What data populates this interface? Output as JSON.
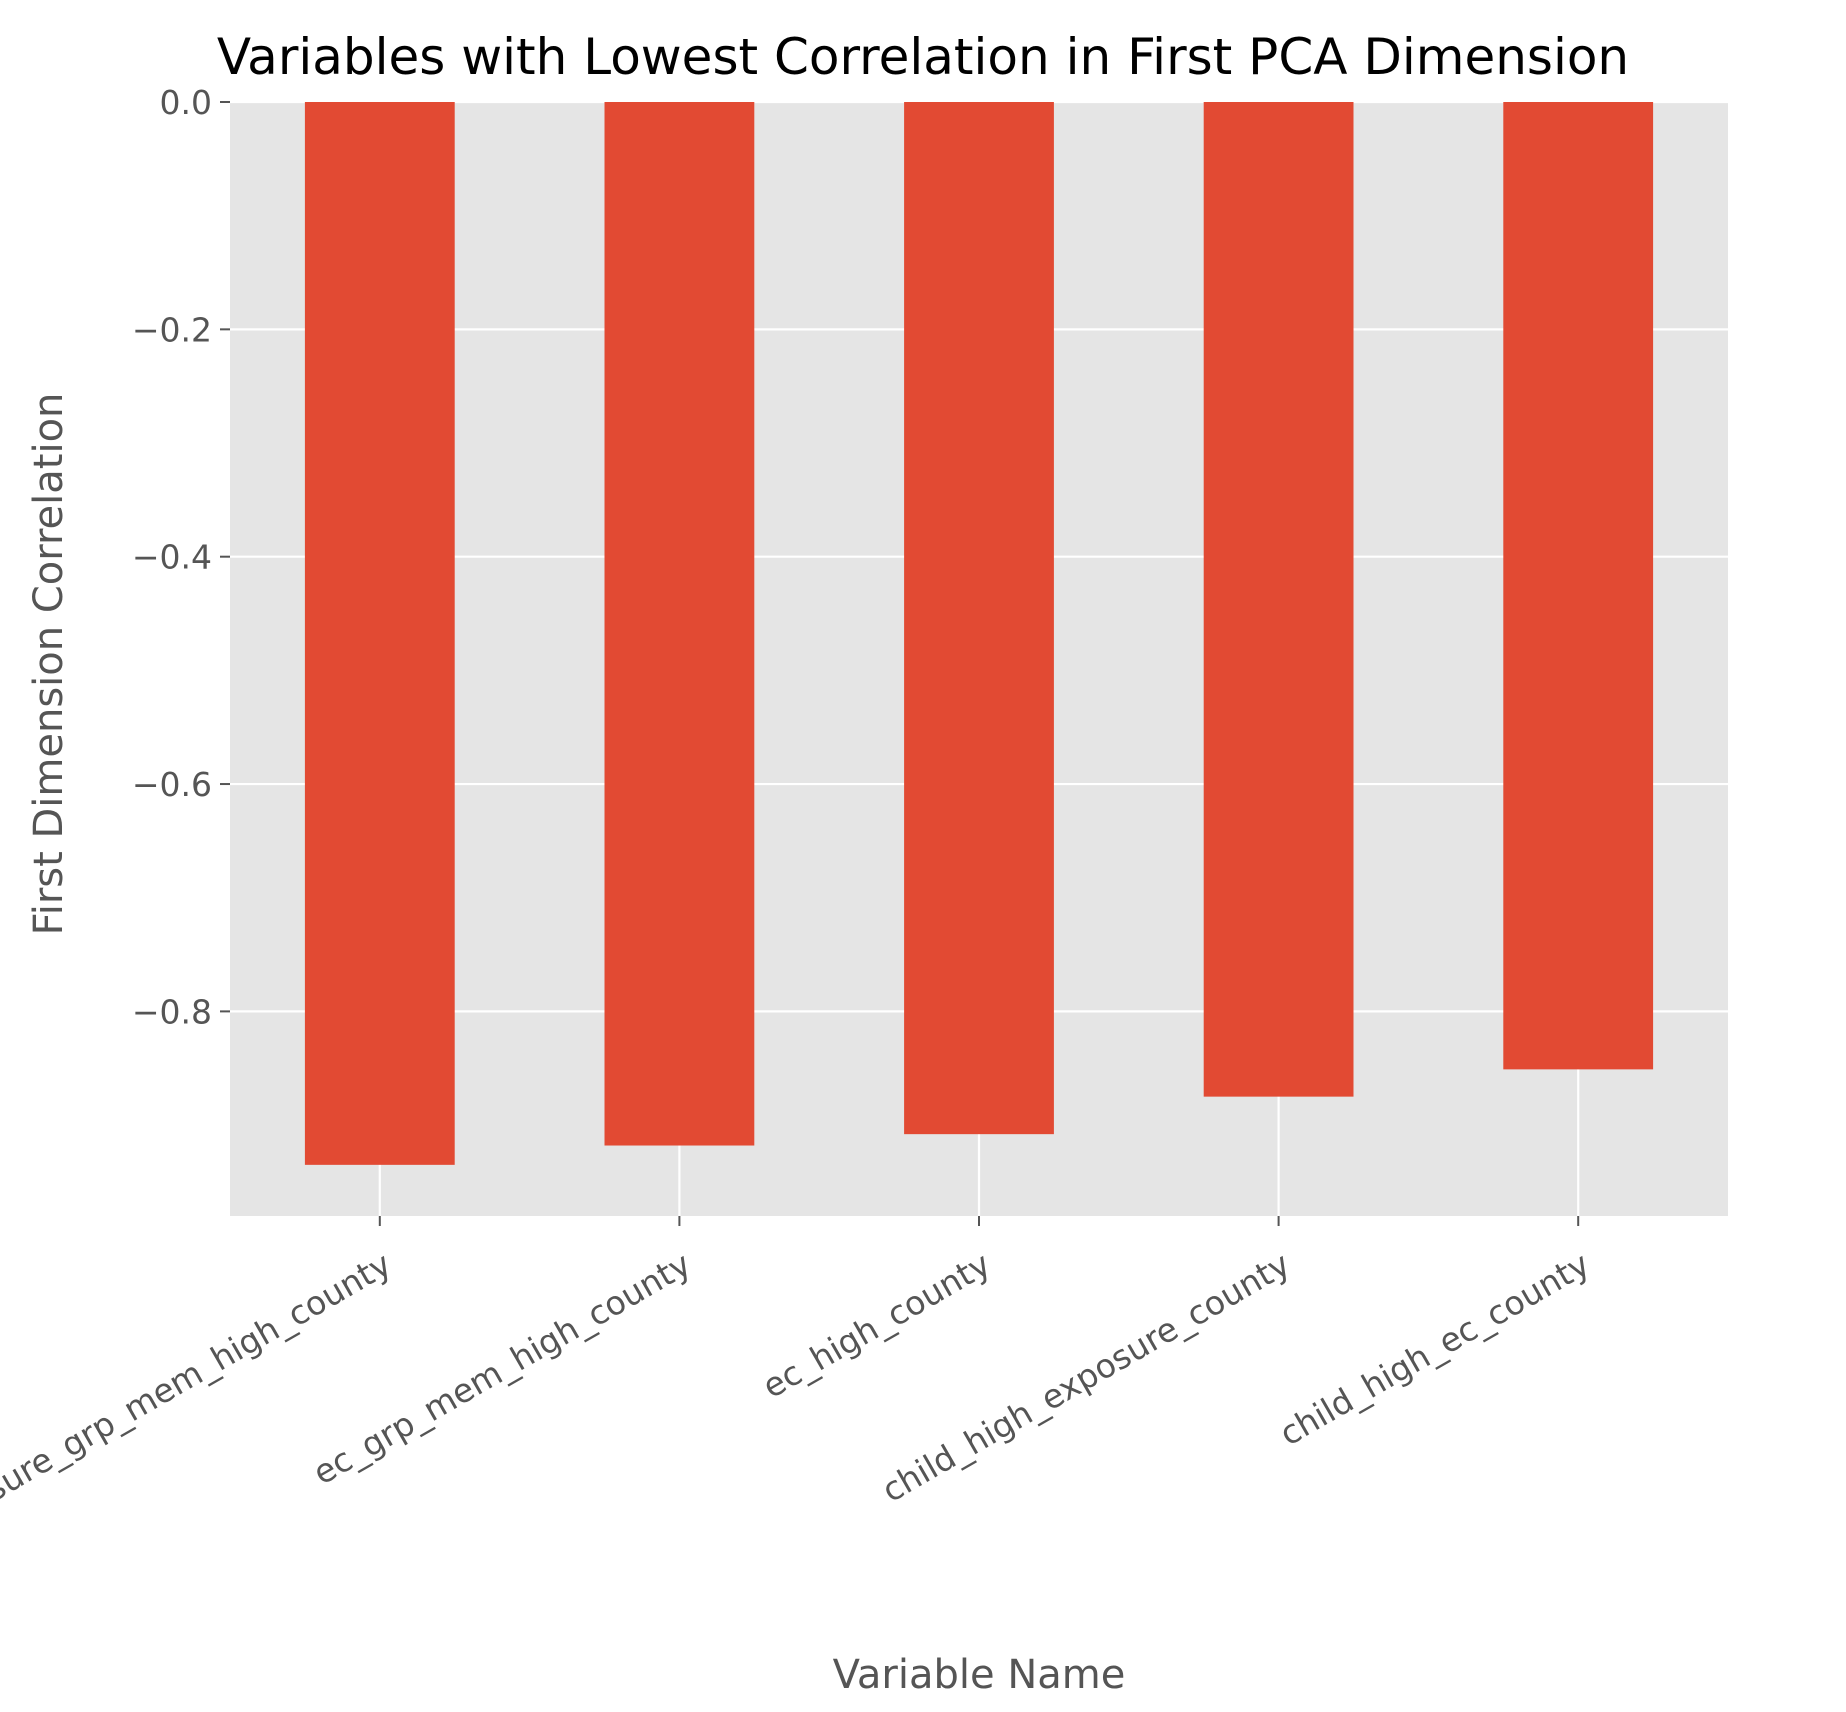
{
  "chart_data": {
    "type": "bar",
    "title": "Variables with Lowest Correlation in First PCA Dimension",
    "xlabel": "Variable Name",
    "ylabel": "First Dimension Correlation",
    "categories": [
      "exposure_grp_mem_high_county",
      "ec_grp_mem_high_county",
      "ec_high_county",
      "child_high_exposure_county",
      "child_high_ec_county"
    ],
    "values": [
      -0.935,
      -0.918,
      -0.908,
      -0.875,
      -0.851
    ],
    "ylim": [
      -0.98,
      0.0
    ],
    "yticks": [
      0.0,
      -0.2,
      -0.4,
      -0.6,
      -0.8
    ],
    "ytick_labels": [
      "0.0",
      "−0.2",
      "−0.4",
      "−0.6",
      "−0.8"
    ],
    "grid": true,
    "colors": {
      "bar": "#E24A33",
      "panel": "#E5E5E5",
      "grid": "#FFFFFF"
    }
  }
}
